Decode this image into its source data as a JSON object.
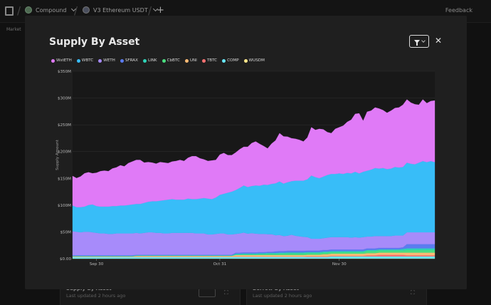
{
  "topbar": {
    "crumb1": "Compound",
    "crumb2": "V3 Ethereum USDT",
    "feedback": "Feedback",
    "market_tab": "Market"
  },
  "background": {
    "card1_title": "Supply By Asset",
    "card1_sub": "Last updated 2 hours ago",
    "card2_title": "Borrow By Asset",
    "card2_sub": "Last updated 2 hours ago"
  },
  "modal": {
    "title": "Supply By Asset",
    "close_symbol": "✕"
  },
  "colors": {
    "wsteth": "#e07af7",
    "wbtc": "#38bdf8",
    "weth": "#a78bfa",
    "sfrax": "#5b7cf0",
    "link": "#2ed3b7",
    "cbbtc": "#4ade80",
    "uni": "#fdba74",
    "tbtc": "#f87171",
    "comp": "#67e8f9",
    "wusdm": "#fde68a"
  },
  "chart_data": {
    "type": "area",
    "stacked": true,
    "title": "Supply By Asset",
    "ylabel": "Supply Amount",
    "xlabel": "",
    "ylim": [
      0,
      350000000
    ],
    "y_ticks": [
      "$0.00",
      "$50M",
      "$100M",
      "$150M",
      "$200M",
      "$250M",
      "$300M",
      "$350M"
    ],
    "x_ticks": [
      {
        "label": "Sep 30",
        "index": 6
      },
      {
        "label": "Oct 31",
        "index": 37
      },
      {
        "label": "Nov 30",
        "index": 67
      }
    ],
    "grid": "horizontal",
    "legend_position": "top-left",
    "series": [
      {
        "name": "WUSDM",
        "color": "#fde68a",
        "values": [
          0.3,
          0.3,
          0.3,
          0.3,
          0.3,
          0.3,
          0.3,
          0.3,
          0.3,
          0.3,
          0.3,
          0.3,
          0.3,
          0.3,
          0.3,
          0.3,
          0.3,
          0.3,
          0.3,
          0.3,
          0.3,
          0.3,
          0.3,
          0.3,
          0.3,
          0.3,
          0.3,
          0.3,
          0.3,
          0.3,
          0.3,
          0.3,
          0.3,
          0.3,
          0.3,
          0.3,
          0.3,
          0.3,
          0.3,
          0.3,
          0.3,
          0.3,
          0.3,
          0.3,
          0.3,
          0.3,
          0.3,
          0.3,
          0.3,
          0.3,
          0.3,
          0.3,
          0.3,
          0.3,
          0.3,
          0.3,
          0.3,
          0.3,
          0.3,
          0.3,
          0.3,
          0.3,
          0.3,
          0.3,
          0.3,
          0.3,
          0.3,
          0.3,
          0.3,
          0.3,
          0.3,
          0.3,
          0.3,
          0.3,
          0.3,
          0.3,
          0.3,
          0.3,
          0.3,
          0.3,
          0.3,
          0.3,
          0.3,
          0.3,
          0.3,
          0.3,
          0.3,
          0.3,
          0.3,
          0.3,
          0.3,
          0.3
        ]
      },
      {
        "name": "COMP",
        "color": "#67e8f9",
        "values": [
          3,
          3,
          3,
          3,
          3,
          3,
          3,
          3,
          3,
          3,
          3,
          3,
          3,
          3,
          3,
          3,
          3,
          3,
          3,
          3,
          3,
          3,
          3,
          3,
          3,
          3,
          3,
          3,
          3,
          3,
          3,
          3,
          3,
          3,
          3,
          3,
          3,
          3,
          3,
          3,
          3,
          3,
          3,
          3,
          3,
          3,
          3,
          3,
          3,
          3,
          3,
          3,
          3,
          3,
          3,
          3,
          3,
          3,
          3,
          3,
          3,
          3,
          3,
          3,
          3,
          4,
          4,
          4,
          4,
          4,
          4,
          4,
          4,
          4,
          4,
          4,
          4,
          4,
          4,
          4,
          4,
          4,
          4,
          4,
          4,
          4,
          4,
          4,
          4,
          4,
          4,
          4
        ]
      },
      {
        "name": "TBTC",
        "color": "#f87171",
        "values": [
          0,
          0,
          0,
          0,
          0,
          0,
          0,
          0,
          0,
          0,
          0,
          0,
          0,
          0,
          0,
          0,
          0,
          0,
          0,
          0,
          0,
          0,
          0,
          0,
          0,
          0,
          0,
          0,
          0,
          0,
          0,
          0,
          0,
          0,
          0,
          0,
          0,
          0,
          0,
          0,
          0,
          0.5,
          0.5,
          0.5,
          0.5,
          0.5,
          0.5,
          0.5,
          0.5,
          0.5,
          0.5,
          0.5,
          0.5,
          0.5,
          0.5,
          0.5,
          0.5,
          0.5,
          0.5,
          1,
          1,
          1,
          1,
          1,
          1,
          1,
          1,
          1,
          1,
          1,
          1,
          1,
          1,
          1,
          2,
          2,
          2,
          3,
          3,
          3,
          3,
          3,
          3,
          3,
          2,
          2,
          2,
          2,
          2,
          2,
          2,
          2
        ]
      },
      {
        "name": "UNI",
        "color": "#fdba74",
        "values": [
          1,
          1,
          1,
          1,
          1,
          1,
          1,
          1,
          1,
          1,
          1,
          1,
          1,
          1,
          1,
          1,
          2,
          2,
          2,
          2,
          2,
          2,
          2,
          2,
          2,
          2,
          2,
          2,
          2,
          2,
          2,
          2,
          2,
          2,
          2,
          2,
          2,
          2,
          2,
          2,
          2,
          3,
          3,
          3,
          3,
          3,
          3,
          3,
          3,
          3,
          3,
          3,
          3,
          3,
          3,
          3,
          3,
          3,
          3,
          3,
          3,
          3,
          3,
          4,
          4,
          4,
          4,
          4,
          4,
          4,
          4,
          4,
          4,
          4,
          4,
          4,
          4,
          4,
          4,
          4,
          4,
          4,
          4,
          4,
          5,
          5,
          5,
          5,
          5,
          5,
          5,
          5
        ]
      },
      {
        "name": "CbBTC",
        "color": "#4ade80",
        "values": [
          0,
          0,
          0,
          0,
          0,
          0,
          0,
          0,
          0,
          0,
          0,
          0,
          0,
          0,
          0,
          0,
          0,
          0,
          0,
          0,
          0,
          0,
          0,
          0,
          0,
          0,
          0,
          0,
          0,
          0,
          0,
          0,
          0,
          0,
          0,
          0,
          0,
          0,
          0,
          0,
          0,
          0.5,
          0.5,
          1,
          1,
          1,
          1,
          1.5,
          1.5,
          2,
          2,
          2,
          2.5,
          2.5,
          3,
          3,
          3,
          3,
          3,
          3,
          3,
          3,
          3,
          3,
          3,
          3,
          3,
          3,
          3,
          3,
          3,
          3,
          3,
          3,
          4,
          4,
          4,
          4,
          4,
          4,
          4,
          4,
          4,
          4,
          5,
          5,
          5,
          5,
          5,
          5,
          5,
          5
        ]
      },
      {
        "name": "LINK",
        "color": "#2ed3b7",
        "values": [
          1,
          1,
          1,
          1,
          1,
          1,
          1,
          1,
          1,
          1,
          1,
          1,
          1,
          1,
          1,
          1,
          1,
          1,
          1,
          1,
          1,
          1,
          1,
          1,
          1,
          1,
          1,
          1,
          1,
          1,
          1,
          1,
          1,
          1,
          1,
          1,
          1,
          1,
          1,
          1,
          1,
          2,
          2,
          2,
          2,
          2,
          2,
          2,
          2,
          2,
          2,
          2,
          2,
          2,
          2,
          2,
          2,
          2,
          2,
          2,
          2,
          2,
          2,
          2,
          2,
          2,
          2,
          2,
          2,
          2,
          2,
          2,
          2,
          2,
          2,
          2,
          2,
          2,
          2,
          2,
          2,
          2,
          2,
          3,
          3,
          3,
          3,
          3,
          3,
          3,
          3,
          3
        ]
      },
      {
        "name": "SFRAX",
        "color": "#5b7cf0",
        "values": [
          1,
          1,
          1,
          1,
          1,
          1,
          1,
          1,
          1,
          1,
          1,
          1,
          1,
          1,
          1,
          1,
          1,
          1,
          1,
          1,
          1,
          1,
          1,
          1,
          1,
          1,
          1,
          1,
          1,
          1,
          1,
          1,
          1,
          1,
          1,
          1,
          1,
          1,
          1,
          1,
          1,
          2,
          2,
          2,
          2,
          2,
          2,
          2,
          2,
          2,
          2,
          3,
          3,
          3,
          3,
          3,
          3,
          3,
          3,
          3,
          3,
          3,
          3,
          3,
          3,
          3,
          3,
          3,
          3,
          3,
          3,
          3,
          3,
          3,
          3,
          3,
          3,
          3,
          3,
          3,
          3,
          3,
          3,
          3,
          8,
          8,
          8,
          8,
          8,
          8,
          8,
          8
        ]
      },
      {
        "name": "WETH",
        "color": "#a78bfa",
        "values": [
          45,
          44,
          43,
          44,
          44,
          43,
          42,
          41,
          41,
          40,
          40,
          41,
          41,
          41,
          41,
          41,
          41,
          40,
          41,
          42,
          42,
          41,
          41,
          40,
          40,
          41,
          41,
          41,
          41,
          41,
          41,
          40,
          40,
          40,
          38,
          38,
          39,
          40,
          40,
          38,
          38,
          35,
          36,
          37,
          35,
          36,
          35,
          34,
          34,
          33,
          33,
          30,
          30,
          28,
          28,
          30,
          28,
          27,
          26,
          25,
          22,
          22,
          22,
          22,
          23,
          23,
          23,
          23,
          23,
          23,
          22,
          23,
          22,
          23,
          22,
          22,
          23,
          22,
          22,
          22,
          22,
          23,
          23,
          22,
          22,
          22,
          22,
          22,
          22,
          22,
          22,
          22
        ]
      },
      {
        "name": "WBTC",
        "color": "#38bdf8",
        "values": [
          48,
          46,
          47,
          47,
          50,
          52,
          50,
          50,
          50,
          51,
          52,
          51,
          52,
          52,
          53,
          54,
          54,
          55,
          56,
          57,
          58,
          59,
          60,
          62,
          63,
          63,
          62,
          62,
          62,
          64,
          63,
          64,
          65,
          66,
          67,
          66,
          68,
          72,
          74,
          78,
          80,
          82,
          85,
          88,
          87,
          88,
          90,
          90,
          92,
          92,
          94,
          97,
          100,
          98,
          100,
          100,
          103,
          104,
          105,
          108,
          118,
          115,
          113,
          115,
          117,
          118,
          118,
          119,
          118,
          120,
          120,
          122,
          120,
          122,
          123,
          125,
          127,
          126,
          127,
          125,
          126,
          128,
          127,
          128,
          130,
          128,
          127,
          130,
          133,
          131,
          133,
          131
        ]
      },
      {
        "name": "WstETH",
        "color": "#e07af7",
        "values": [
          55,
          54,
          57,
          62,
          61,
          58,
          62,
          66,
          67,
          66,
          70,
          72,
          75,
          73,
          78,
          80,
          82,
          82,
          75,
          74,
          72,
          70,
          72,
          70,
          68,
          70,
          72,
          74,
          72,
          76,
          80,
          80,
          75,
          72,
          70,
          72,
          70,
          75,
          76,
          70,
          68,
          70,
          72,
          72,
          75,
          80,
          82,
          78,
          72,
          68,
          75,
          80,
          90,
          88,
          85,
          80,
          78,
          76,
          73,
          78,
          90,
          88,
          92,
          88,
          80,
          76,
          84,
          86,
          90,
          95,
          100,
          108,
          112,
          95,
          110,
          110,
          113,
          112,
          108,
          105,
          108,
          110,
          112,
          116,
          118,
          114,
          112,
          108,
          115,
          110,
          112,
          115
        ]
      }
    ]
  }
}
